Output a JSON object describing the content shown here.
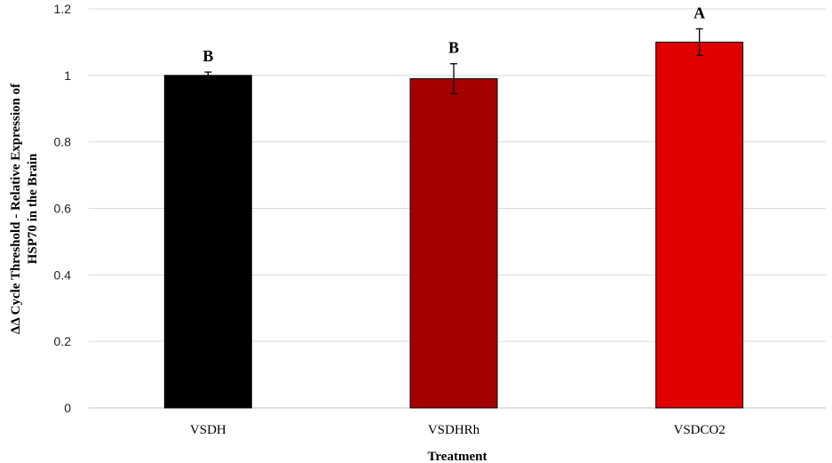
{
  "chart_data": {
    "type": "bar",
    "title": "",
    "xlabel": "Treatment",
    "ylabel_lines": [
      "ΔΔ Cycle Threshold - Relative Expression of",
      "HSP70 in the Brain"
    ],
    "ylim": [
      0,
      1.2
    ],
    "yticks": [
      "0",
      "0.2",
      "0.4",
      "0.6",
      "0.8",
      "1",
      "1.2"
    ],
    "categories": [
      "VSDH",
      "VSDHRh",
      "VSDCO2"
    ],
    "values": [
      1.0,
      0.99,
      1.1
    ],
    "errors": [
      0.01,
      0.045,
      0.04
    ],
    "significance": [
      "B",
      "B",
      "A"
    ],
    "colors": [
      "#000000",
      "#a50000",
      "#e00000"
    ],
    "grid": true
  }
}
